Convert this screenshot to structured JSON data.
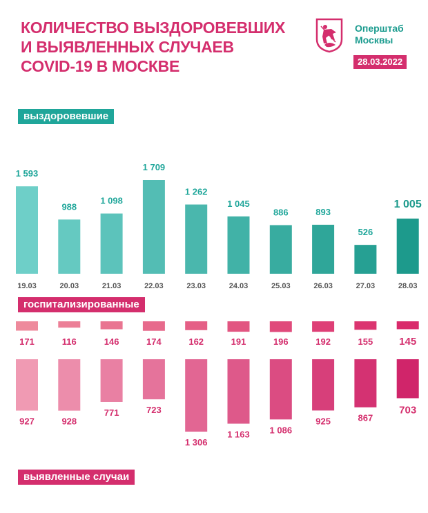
{
  "header": {
    "title_lines": [
      "КОЛИЧЕСТВО ВЫЗДОРОВЕВШИХ",
      "И ВЫЯВЛЕННЫХ СЛУЧАЕВ",
      "COVID-19 В МОСКВЕ"
    ],
    "brand_line1": "Оперштаб",
    "brand_line2": "Москвы",
    "date": "28.03.2022"
  },
  "labels": {
    "recovered": "выздоровевшие",
    "hospitalized": "госпитализированные",
    "cases": "выявленные случаи"
  },
  "colors": {
    "brand_pink": "#d42e6d",
    "brand_teal": "#1fa69a",
    "recovered_gradient": [
      "#6ecfc8",
      "#1d9a8c"
    ],
    "hospitalized_gradient": [
      "#ee8a9c",
      "#d92a6b"
    ],
    "cases_gradient": [
      "#f09ab3",
      "#d0256a"
    ]
  },
  "chart_data": {
    "type": "bar",
    "categories": [
      "19.03",
      "20.03",
      "21.03",
      "22.03",
      "23.03",
      "24.03",
      "25.03",
      "26.03",
      "27.03",
      "28.03"
    ],
    "series": [
      {
        "name": "выздоровевшие",
        "values": [
          1593,
          988,
          1098,
          1709,
          1262,
          1045,
          886,
          893,
          526,
          1005
        ],
        "value_labels": [
          "1 593",
          "988",
          "1 098",
          "1 709",
          "1 262",
          "1 045",
          "886",
          "893",
          "526",
          "1 005"
        ]
      },
      {
        "name": "госпитализированные",
        "values": [
          171,
          116,
          146,
          174,
          162,
          191,
          196,
          192,
          155,
          145
        ],
        "value_labels": [
          "171",
          "116",
          "146",
          "174",
          "162",
          "191",
          "196",
          "192",
          "155",
          "145"
        ]
      },
      {
        "name": "выявленные случаи",
        "values": [
          927,
          928,
          771,
          723,
          1306,
          1163,
          1086,
          925,
          867,
          703
        ],
        "value_labels": [
          "927",
          "928",
          "771",
          "723",
          "1 306",
          "1 163",
          "1 086",
          "925",
          "867",
          "703"
        ]
      }
    ],
    "title": "КОЛИЧЕСТВО ВЫЗДОРОВЕВШИХ И ВЫЯВЛЕННЫХ СЛУЧАЕВ COVID-19 В МОСКВЕ"
  }
}
